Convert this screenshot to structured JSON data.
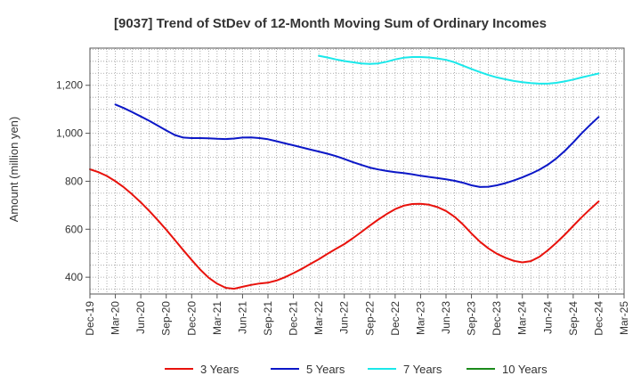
{
  "chart_data": {
    "type": "line",
    "title": "[9037]  Trend of StDev of 12-Month Moving Sum of Ordinary Incomes",
    "ylabel": "Amount (million yen)",
    "xlabel": "",
    "x_ticks": [
      "Dec-19",
      "Mar-20",
      "Jun-20",
      "Sep-20",
      "Dec-20",
      "Mar-21",
      "Jun-21",
      "Sep-21",
      "Dec-21",
      "Mar-22",
      "Jun-22",
      "Sep-22",
      "Dec-22",
      "Mar-23",
      "Jun-23",
      "Sep-23",
      "Dec-23",
      "Mar-24",
      "Jun-24",
      "Sep-24",
      "Dec-24",
      "Mar-25"
    ],
    "y_ticks": [
      400,
      600,
      800,
      1000,
      1200
    ],
    "y_tick_labels": [
      "400",
      "600",
      "800",
      "1,000",
      "1,200"
    ],
    "ylim": [
      330,
      1355
    ],
    "grid": true,
    "legend_position": "bottom",
    "colors": {
      "3 Years": "#e8120c",
      "5 Years": "#0b17c7",
      "7 Years": "#1ae8ea",
      "10 Years": "#1b8a1b",
      "grid": "#9a9a9a",
      "axis": "#555555"
    },
    "series": [
      {
        "name": "3 Years",
        "points": [
          [
            "Dec-19",
            850
          ],
          [
            "Jan-20",
            838
          ],
          [
            "Feb-20",
            822
          ],
          [
            "Mar-20",
            800
          ],
          [
            "Apr-20",
            775
          ],
          [
            "May-20",
            745
          ],
          [
            "Jun-20",
            712
          ],
          [
            "Jul-20",
            676
          ],
          [
            "Aug-20",
            638
          ],
          [
            "Sep-20",
            598
          ],
          [
            "Oct-20",
            556
          ],
          [
            "Nov-20",
            513
          ],
          [
            "Dec-20",
            472
          ],
          [
            "Jan-21",
            432
          ],
          [
            "Feb-21",
            398
          ],
          [
            "Mar-21",
            373
          ],
          [
            "Apr-21",
            356
          ],
          [
            "May-21",
            352
          ],
          [
            "Jun-21",
            360
          ],
          [
            "Jul-21",
            368
          ],
          [
            "Aug-21",
            374
          ],
          [
            "Sep-21",
            377
          ],
          [
            "Oct-21",
            386
          ],
          [
            "Nov-21",
            400
          ],
          [
            "Dec-21",
            417
          ],
          [
            "Jan-22",
            435
          ],
          [
            "Feb-22",
            455
          ],
          [
            "Mar-22",
            475
          ],
          [
            "Apr-22",
            497
          ],
          [
            "May-22",
            518
          ],
          [
            "Jun-22",
            538
          ],
          [
            "Jul-22",
            562
          ],
          [
            "Aug-22",
            588
          ],
          [
            "Sep-22",
            615
          ],
          [
            "Oct-22",
            640
          ],
          [
            "Nov-22",
            663
          ],
          [
            "Dec-22",
            684
          ],
          [
            "Jan-23",
            698
          ],
          [
            "Feb-23",
            705
          ],
          [
            "Mar-23",
            706
          ],
          [
            "Apr-23",
            702
          ],
          [
            "May-23",
            692
          ],
          [
            "Jun-23",
            676
          ],
          [
            "Jul-23",
            652
          ],
          [
            "Aug-23",
            620
          ],
          [
            "Sep-23",
            582
          ],
          [
            "Oct-23",
            548
          ],
          [
            "Nov-23",
            520
          ],
          [
            "Dec-23",
            498
          ],
          [
            "Jan-24",
            481
          ],
          [
            "Feb-24",
            468
          ],
          [
            "Mar-24",
            462
          ],
          [
            "Apr-24",
            467
          ],
          [
            "May-24",
            485
          ],
          [
            "Jun-24",
            512
          ],
          [
            "Jul-24",
            543
          ],
          [
            "Aug-24",
            577
          ],
          [
            "Sep-24",
            614
          ],
          [
            "Oct-24",
            650
          ],
          [
            "Nov-24",
            684
          ],
          [
            "Dec-24",
            716
          ]
        ]
      },
      {
        "name": "5 Years",
        "points": [
          [
            "Mar-20",
            1120
          ],
          [
            "Apr-20",
            1105
          ],
          [
            "May-20",
            1088
          ],
          [
            "Jun-20",
            1070
          ],
          [
            "Jul-20",
            1052
          ],
          [
            "Aug-20",
            1032
          ],
          [
            "Sep-20",
            1012
          ],
          [
            "Oct-20",
            993
          ],
          [
            "Nov-20",
            982
          ],
          [
            "Dec-20",
            980
          ],
          [
            "Jan-21",
            980
          ],
          [
            "Feb-21",
            979
          ],
          [
            "Mar-21",
            977
          ],
          [
            "Apr-21",
            976
          ],
          [
            "May-21",
            978
          ],
          [
            "Jun-21",
            982
          ],
          [
            "Jul-21",
            983
          ],
          [
            "Aug-21",
            980
          ],
          [
            "Sep-21",
            975
          ],
          [
            "Oct-21",
            967
          ],
          [
            "Nov-21",
            958
          ],
          [
            "Dec-21",
            950
          ],
          [
            "Jan-22",
            941
          ],
          [
            "Feb-22",
            932
          ],
          [
            "Mar-22",
            924
          ],
          [
            "Apr-22",
            915
          ],
          [
            "May-22",
            905
          ],
          [
            "Jun-22",
            893
          ],
          [
            "Jul-22",
            880
          ],
          [
            "Aug-22",
            868
          ],
          [
            "Sep-22",
            857
          ],
          [
            "Oct-22",
            849
          ],
          [
            "Nov-22",
            843
          ],
          [
            "Dec-22",
            838
          ],
          [
            "Jan-23",
            834
          ],
          [
            "Feb-23",
            829
          ],
          [
            "Mar-23",
            823
          ],
          [
            "Apr-23",
            818
          ],
          [
            "May-23",
            813
          ],
          [
            "Jun-23",
            808
          ],
          [
            "Jul-23",
            802
          ],
          [
            "Aug-23",
            794
          ],
          [
            "Sep-23",
            783
          ],
          [
            "Oct-23",
            776
          ],
          [
            "Nov-23",
            777
          ],
          [
            "Dec-23",
            783
          ],
          [
            "Jan-24",
            792
          ],
          [
            "Feb-24",
            803
          ],
          [
            "Mar-24",
            816
          ],
          [
            "Apr-24",
            831
          ],
          [
            "May-24",
            848
          ],
          [
            "Jun-24",
            869
          ],
          [
            "Jul-24",
            895
          ],
          [
            "Aug-24",
            926
          ],
          [
            "Sep-24",
            962
          ],
          [
            "Oct-24",
            1000
          ],
          [
            "Nov-24",
            1035
          ],
          [
            "Dec-24",
            1068
          ]
        ]
      },
      {
        "name": "7 Years",
        "points": [
          [
            "Mar-22",
            1323
          ],
          [
            "Apr-22",
            1316
          ],
          [
            "May-22",
            1308
          ],
          [
            "Jun-22",
            1301
          ],
          [
            "Jul-22",
            1296
          ],
          [
            "Aug-22",
            1291
          ],
          [
            "Sep-22",
            1289
          ],
          [
            "Oct-22",
            1291
          ],
          [
            "Nov-22",
            1298
          ],
          [
            "Dec-22",
            1308
          ],
          [
            "Jan-23",
            1315
          ],
          [
            "Feb-23",
            1318
          ],
          [
            "Mar-23",
            1318
          ],
          [
            "Apr-23",
            1316
          ],
          [
            "May-23",
            1312
          ],
          [
            "Jun-23",
            1306
          ],
          [
            "Jul-23",
            1296
          ],
          [
            "Aug-23",
            1282
          ],
          [
            "Sep-23",
            1268
          ],
          [
            "Oct-23",
            1255
          ],
          [
            "Nov-23",
            1243
          ],
          [
            "Dec-23",
            1233
          ],
          [
            "Jan-24",
            1225
          ],
          [
            "Feb-24",
            1218
          ],
          [
            "Mar-24",
            1213
          ],
          [
            "Apr-24",
            1209
          ],
          [
            "May-24",
            1207
          ],
          [
            "Jun-24",
            1207
          ],
          [
            "Jul-24",
            1210
          ],
          [
            "Aug-24",
            1216
          ],
          [
            "Sep-24",
            1224
          ],
          [
            "Oct-24",
            1233
          ],
          [
            "Nov-24",
            1241
          ],
          [
            "Dec-24",
            1249
          ]
        ]
      },
      {
        "name": "10 Years",
        "points": []
      }
    ]
  }
}
